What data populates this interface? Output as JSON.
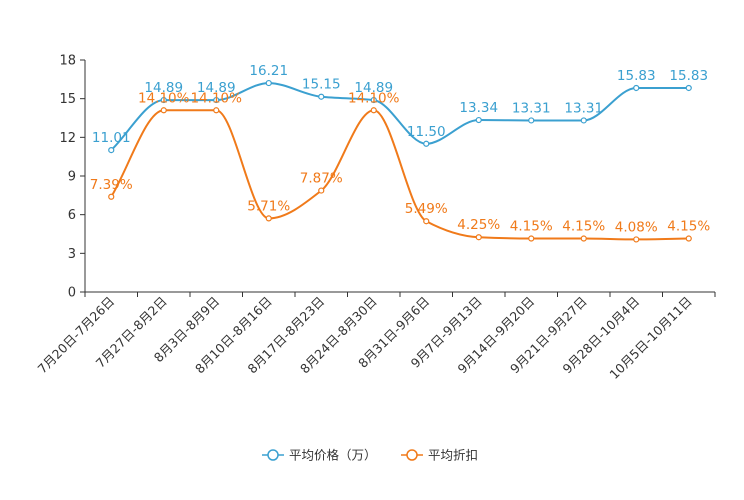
{
  "chart_data": {
    "type": "line",
    "title": "",
    "xlabel": "",
    "ylabel": "",
    "ylim": [
      0,
      18
    ],
    "yticks": [
      0,
      3,
      6,
      9,
      12,
      15,
      18
    ],
    "grid": false,
    "legend_position": "bottom-center",
    "categories": [
      "7月20日-7月26日",
      "7月27日-8月2日",
      "8月3日-8月9日",
      "8月10日-8月16日",
      "8月17日-8月23日",
      "8月24日-8月30日",
      "8月31日-9月6日",
      "9月7日-9月13日",
      "9月14日-9月20日",
      "9月21日-9月27日",
      "9月28日-10月4日",
      "10月5日-10月11日"
    ],
    "series": [
      {
        "name": "平均价格（万）",
        "color": "#3ba0d0",
        "values": [
          11.01,
          14.89,
          14.89,
          16.21,
          15.15,
          14.89,
          11.5,
          13.34,
          13.31,
          13.31,
          15.83,
          15.83
        ],
        "labels": [
          "11.01",
          "14.89",
          "14.89",
          "16.21",
          "15.15",
          "14.89",
          "11.50",
          "13.34",
          "13.31",
          "13.31",
          "15.83",
          "15.83"
        ]
      },
      {
        "name": "平均折扣",
        "color": "#f07a1a",
        "values": [
          7.39,
          14.1,
          14.1,
          5.71,
          7.87,
          14.1,
          5.49,
          4.25,
          4.15,
          4.15,
          4.08,
          4.15
        ],
        "labels": [
          "7.39%",
          "14.10%",
          "14.10%",
          "5.71%",
          "7.87%",
          "14.10%",
          "5.49%",
          "4.25%",
          "4.15%",
          "4.15%",
          "4.08%",
          "4.15%"
        ]
      }
    ]
  }
}
